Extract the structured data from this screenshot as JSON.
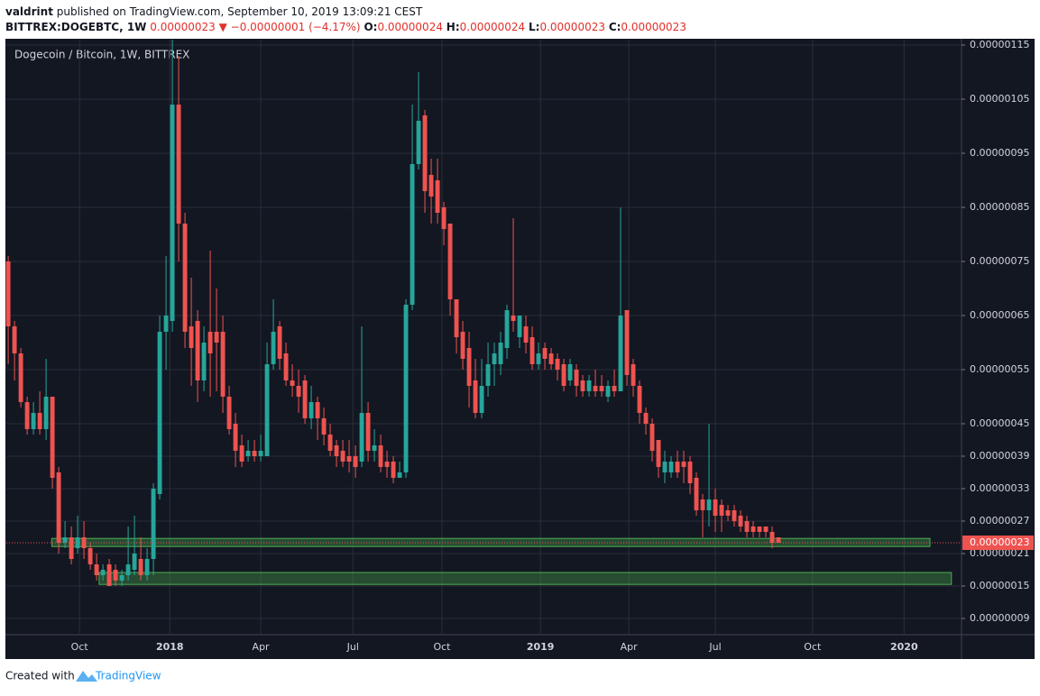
{
  "header": {
    "author": "valdrint",
    "published": "published on TradingView.com, September 10, 2019 13:09:21 CEST",
    "symbol": "BITTREX:DOGEBTC, 1W",
    "last": "0.00000023",
    "arrow": "▼",
    "change": "−0.00000001 (−4.17%)",
    "ohlc": [
      {
        "label": "O:",
        "value": "0.00000024"
      },
      {
        "label": "H:",
        "value": "0.00000024"
      },
      {
        "label": "L:",
        "value": "0.00000023"
      },
      {
        "label": "C:",
        "value": "0.00000023"
      }
    ]
  },
  "footer": {
    "created": "Created with",
    "brand": "TradingView"
  },
  "chart_data": {
    "type": "candlestick",
    "title": "Dogecoin / Bitcoin, 1W, BITTREX",
    "up_color": "#26a69a",
    "down_color": "#ef5350",
    "grid": true,
    "open": [
      7.5e-07,
      6.3e-07,
      5.8e-07,
      4.9e-07,
      4.4e-07,
      4.7e-07,
      4.4e-07,
      5e-07,
      3.6e-07,
      2.3e-07,
      2.4e-07,
      2.2e-07,
      2.4e-07,
      2.2e-07,
      1.9e-07,
      1.7e-07,
      1.9e-07,
      1.8e-07,
      1.6e-07,
      1.7e-07,
      1.8e-07,
      2e-07,
      1.7e-07,
      2e-07,
      3.2e-07,
      6.2e-07,
      6.4e-07,
      1.04e-06,
      8.2e-07,
      6.3e-07,
      6.4e-07,
      5.3e-07,
      6.2e-07,
      6.2e-07,
      6.2e-07,
      5e-07,
      4.5e-07,
      4.1e-07,
      3.9e-07,
      4e-07,
      3.9e-07,
      3.9e-07,
      5.6e-07,
      6.3e-07,
      5.8e-07,
      5.3e-07,
      5.2e-07,
      5.3e-07,
      4.6e-07,
      4.9e-07,
      4.6e-07,
      4.3e-07,
      4.1e-07,
      4e-07,
      3.9e-07,
      3.9e-07,
      3.8e-07,
      4.7e-07,
      4e-07,
      4.1e-07,
      3.8e-07,
      3.8e-07,
      3.5e-07,
      3.6e-07,
      6.7e-07,
      9.3e-07,
      1.02e-06,
      9.1e-07,
      9e-07,
      8.5e-07,
      8.2e-07,
      6.8e-07,
      6.2e-07,
      5.9e-07,
      5.3e-07,
      4.7e-07,
      5.2e-07,
      5.6e-07,
      5.6e-07,
      5.9e-07,
      6.5e-07,
      6.1e-07,
      6.3e-07,
      6.1e-07,
      5.6e-07,
      5.9e-07,
      5.8e-07,
      5.7e-07,
      5.6e-07,
      5.3e-07,
      5.5e-07,
      5.3e-07,
      5.1e-07,
      5.2e-07,
      5.2e-07,
      5e-07,
      5.2e-07,
      5.1e-07,
      6.6e-07,
      5.6e-07,
      5.2e-07,
      4.7e-07,
      4.5e-07,
      4.2e-07,
      3.6e-07,
      3.6e-07,
      3.8e-07,
      3.8e-07,
      3.8e-07,
      3.5e-07,
      3.1e-07,
      2.9e-07,
      3.1e-07,
      3e-07,
      2.9e-07,
      2.9e-07,
      2.8e-07,
      2.7e-07,
      2.6e-07,
      2.6e-07,
      2.6e-07,
      2.5e-07,
      2.4e-07
    ],
    "high": [
      7.6e-07,
      6.4e-07,
      5.9e-07,
      5e-07,
      4.9e-07,
      5.1e-07,
      5.7e-07,
      5e-07,
      3.7e-07,
      2.7e-07,
      2.6e-07,
      2.8e-07,
      2.7e-07,
      2.3e-07,
      2.1e-07,
      1.9e-07,
      2e-07,
      1.9e-07,
      1.8e-07,
      2.6e-07,
      2.8e-07,
      2.4e-07,
      2.2e-07,
      3.4e-07,
      6.5e-07,
      7.6e-07,
      1.16e-06,
      1.13e-06,
      8.4e-07,
      7.2e-07,
      6.6e-07,
      6.3e-07,
      7.7e-07,
      7e-07,
      6.5e-07,
      5.2e-07,
      4.7e-07,
      4.3e-07,
      4.2e-07,
      4.2e-07,
      4.3e-07,
      6e-07,
      6.8e-07,
      6.4e-07,
      6e-07,
      5.6e-07,
      5.5e-07,
      5.4e-07,
      5.2e-07,
      5e-07,
      4.8e-07,
      4.5e-07,
      4.2e-07,
      4.2e-07,
      4.2e-07,
      4.1e-07,
      6.3e-07,
      4.9e-07,
      4.4e-07,
      4.3e-07,
      4e-07,
      3.9e-07,
      3.8e-07,
      6.8e-07,
      1.04e-06,
      1.1e-06,
      1.03e-06,
      9.4e-07,
      9.4e-07,
      8.6e-07,
      8.2e-07,
      6.8e-07,
      6.4e-07,
      6.2e-07,
      5.7e-07,
      5.7e-07,
      6e-07,
      6e-07,
      6.2e-07,
      6.7e-07,
      8.3e-07,
      6.5e-07,
      6.5e-07,
      6.3e-07,
      6e-07,
      6e-07,
      5.9e-07,
      5.8e-07,
      5.7e-07,
      5.7e-07,
      5.6e-07,
      5.4e-07,
      5.4e-07,
      5.5e-07,
      5.4e-07,
      5.3e-07,
      5.5e-07,
      8.5e-07,
      6.6e-07,
      5.7e-07,
      5.3e-07,
      4.8e-07,
      4.6e-07,
      4.2e-07,
      4e-07,
      3.9e-07,
      4e-07,
      4e-07,
      3.9e-07,
      3.6e-07,
      3.2e-07,
      4.5e-07,
      3.3e-07,
      3.1e-07,
      3e-07,
      3e-07,
      2.9e-07,
      2.8e-07,
      2.7e-07,
      2.6e-07,
      2.6e-07,
      2.6e-07,
      2.4e-07
    ],
    "low": [
      5.6e-07,
      5.3e-07,
      4.8e-07,
      4.3e-07,
      4.3e-07,
      4.3e-07,
      4.2e-07,
      3.3e-07,
      2.1e-07,
      2.2e-07,
      1.9e-07,
      2.1e-07,
      2e-07,
      1.8e-07,
      1.6e-07,
      1.6e-07,
      1.5e-07,
      1.5e-07,
      1.5e-07,
      1.6e-07,
      1.7e-07,
      1.6e-07,
      1.6e-07,
      1.7e-07,
      3.1e-07,
      5.5e-07,
      6.2e-07,
      7.5e-07,
      5.9e-07,
      5.2e-07,
      4.9e-07,
      5.1e-07,
      5e-07,
      5.1e-07,
      4.7e-07,
      4.3e-07,
      3.7e-07,
      3.7e-07,
      3.8e-07,
      3.8e-07,
      3.8e-07,
      3.9e-07,
      5.5e-07,
      5.5e-07,
      5.2e-07,
      5e-07,
      4.7e-07,
      4.5e-07,
      4.4e-07,
      4.2e-07,
      4.1e-07,
      3.9e-07,
      3.7e-07,
      3.7e-07,
      3.6e-07,
      3.5e-07,
      3.7e-07,
      3.8e-07,
      3.8e-07,
      3.6e-07,
      3.5e-07,
      3.4e-07,
      3.5e-07,
      3.5e-07,
      6.6e-07,
      9.2e-07,
      8.4e-07,
      8.2e-07,
      8.2e-07,
      7.8e-07,
      6.5e-07,
      5.8e-07,
      5.5e-07,
      4.8e-07,
      4.6e-07,
      4.6e-07,
      5e-07,
      5.2e-07,
      5.4e-07,
      5.7e-07,
      6.2e-07,
      5.9e-07,
      5.8e-07,
      5.5e-07,
      5.5e-07,
      5.5e-07,
      5.5e-07,
      5.3e-07,
      5.1e-07,
      5.2e-07,
      5e-07,
      5e-07,
      5e-07,
      5e-07,
      5e-07,
      4.9e-07,
      5e-07,
      5.1e-07,
      5.2e-07,
      5e-07,
      4.5e-07,
      4.3e-07,
      3.8e-07,
      3.5e-07,
      3.4e-07,
      3.5e-07,
      3.5e-07,
      3.4e-07,
      3.2e-07,
      2.8e-07,
      2.4e-07,
      2.6e-07,
      2.5e-07,
      2.5e-07,
      2.7e-07,
      2.6e-07,
      2.5e-07,
      2.4e-07,
      2.4e-07,
      2.4e-07,
      2.4e-07,
      2.2e-07,
      2.3e-07
    ],
    "close": [
      6.3e-07,
      5.8e-07,
      4.9e-07,
      4.4e-07,
      4.7e-07,
      4.4e-07,
      5e-07,
      3.5e-07,
      2.3e-07,
      2.4e-07,
      2e-07,
      2.4e-07,
      2.2e-07,
      1.9e-07,
      1.7e-07,
      1.8e-07,
      1.5e-07,
      1.6e-07,
      1.7e-07,
      1.9e-07,
      2.1e-07,
      1.7e-07,
      2e-07,
      3.3e-07,
      6.2e-07,
      6.5e-07,
      1.04e-06,
      8.2e-07,
      6.2e-07,
      5.9e-07,
      5.3e-07,
      6e-07,
      5.8e-07,
      6e-07,
      5e-07,
      4.4e-07,
      4e-07,
      3.8e-07,
      4e-07,
      3.9e-07,
      4e-07,
      5.6e-07,
      6.2e-07,
      5.7e-07,
      5.3e-07,
      5.2e-07,
      5e-07,
      4.6e-07,
      4.9e-07,
      4.6e-07,
      4.3e-07,
      4e-07,
      3.9e-07,
      3.8e-07,
      3.8e-07,
      3.7e-07,
      4.7e-07,
      4e-07,
      4.1e-07,
      3.7e-07,
      3.7e-07,
      3.5e-07,
      3.6e-07,
      6.7e-07,
      9.3e-07,
      1.01e-06,
      8.8e-07,
      8.7e-07,
      8.4e-07,
      8.1e-07,
      6.8e-07,
      6.1e-07,
      5.7e-07,
      5.2e-07,
      4.7e-07,
      5.2e-07,
      5.6e-07,
      5.8e-07,
      6e-07,
      6.6e-07,
      6.4e-07,
      6.5e-07,
      6e-07,
      5.6e-07,
      5.8e-07,
      5.7e-07,
      5.6e-07,
      5.5e-07,
      5.2e-07,
      5.6e-07,
      5.2e-07,
      5.1e-07,
      5.3e-07,
      5.1e-07,
      5.1e-07,
      5.2e-07,
      5.1e-07,
      6.5e-07,
      5.4e-07,
      5.2e-07,
      4.7e-07,
      4.5e-07,
      4e-07,
      3.7e-07,
      3.8e-07,
      3.8e-07,
      3.6e-07,
      3.7e-07,
      3.4e-07,
      2.9e-07,
      2.9e-07,
      3.1e-07,
      2.8e-07,
      2.8e-07,
      2.8e-07,
      2.7e-07,
      2.6e-07,
      2.5e-07,
      2.5e-07,
      2.5e-07,
      2.5e-07,
      2.3e-07,
      2.3e-07
    ],
    "zones": [
      {
        "low": 2.23e-07,
        "high": 2.38e-07,
        "start": 6.9,
        "end": 146
      },
      {
        "low": 1.53e-07,
        "high": 1.75e-07,
        "start": 14.4,
        "end": 149.4
      }
    ],
    "price_label": {
      "value": 2.3e-07,
      "label": "0.00000023"
    },
    "ylim": [
      6e-08,
      1.16e-06
    ],
    "yticks": [
      {
        "value": 1.15e-06,
        "label": "0.00000115"
      },
      {
        "value": 1.05e-06,
        "label": "0.00000105"
      },
      {
        "value": 9.5e-07,
        "label": "0.00000095"
      },
      {
        "value": 8.5e-07,
        "label": "0.00000085"
      },
      {
        "value": 7.5e-07,
        "label": "0.00000075"
      },
      {
        "value": 6.5e-07,
        "label": "0.00000065"
      },
      {
        "value": 5.5e-07,
        "label": "0.00000055"
      },
      {
        "value": 4.5e-07,
        "label": "0.00000045"
      },
      {
        "value": 3.9e-07,
        "label": "0.00000039"
      },
      {
        "value": 3.3e-07,
        "label": "0.00000033"
      },
      {
        "value": 2.7e-07,
        "label": "0.00000027"
      },
      {
        "value": 2.1e-07,
        "label": "0.00000021"
      },
      {
        "value": 1.5e-07,
        "label": "0.00000015"
      },
      {
        "value": 9e-08,
        "label": "0.00000009"
      }
    ],
    "xlim": [
      -0.3,
      151
    ],
    "xticks": [
      {
        "value": 11.3,
        "label": "Oct"
      },
      {
        "value": 25.6,
        "label": "2018"
      },
      {
        "value": 40,
        "label": "Apr"
      },
      {
        "value": 54.6,
        "label": "Jul"
      },
      {
        "value": 68.7,
        "label": "Oct"
      },
      {
        "value": 84.3,
        "label": "2019"
      },
      {
        "value": 98.3,
        "label": "Apr"
      },
      {
        "value": 112,
        "label": "Jul"
      },
      {
        "value": 127.4,
        "label": "Oct"
      },
      {
        "value": 141.9,
        "label": "2020"
      }
    ]
  }
}
